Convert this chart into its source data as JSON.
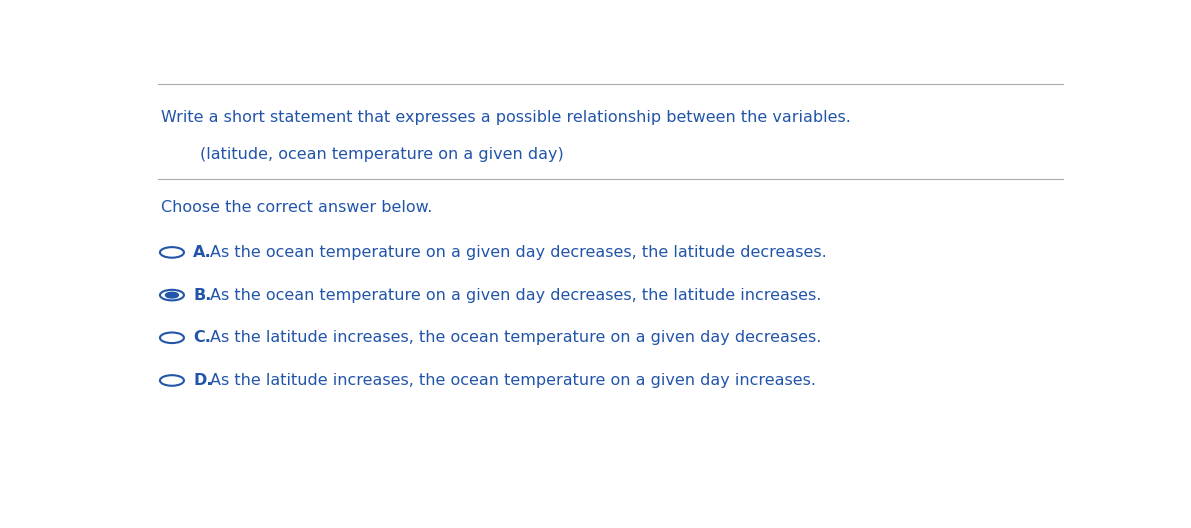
{
  "title_line1": "Write a short statement that expresses a possible relationship between the variables.",
  "title_line2": "(latitude, ocean temperature on a given day)",
  "instruction": "Choose the correct answer below.",
  "options": [
    {
      "letter": "A.",
      "text": "As the ocean temperature on a given day decreases, the latitude decreases.",
      "selected": false
    },
    {
      "letter": "B.",
      "text": "As the ocean temperature on a given day decreases, the latitude increases.",
      "selected": true
    },
    {
      "letter": "C.",
      "text": "As the latitude increases, the ocean temperature on a given day decreases.",
      "selected": false
    },
    {
      "letter": "D.",
      "text": "As the latitude increases, the ocean temperature on a given day increases.",
      "selected": false
    }
  ],
  "text_color": "#2255aa",
  "background_color": "#ffffff",
  "line_color": "#aaaaaa",
  "circle_edge_selected": "#2255aa",
  "circle_fill_selected": "#2255aa",
  "circle_edge_unselected": "#2255aa",
  "circle_fill_unselected": "#ffffff",
  "font_size_title": 11.5,
  "font_size_subtitle": 11.5,
  "font_size_instruction": 11.5,
  "font_size_options": 11.5
}
